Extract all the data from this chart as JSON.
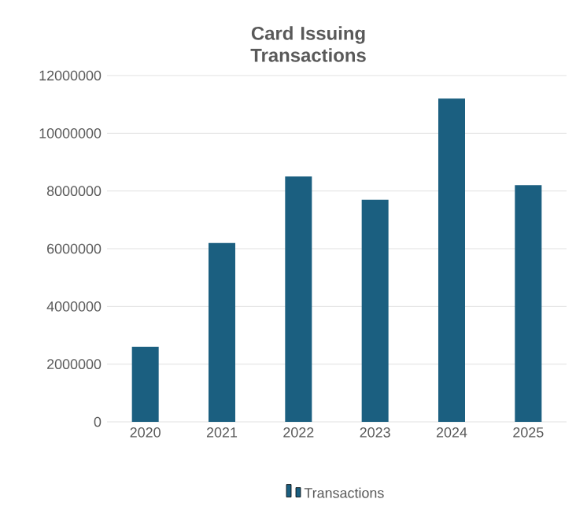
{
  "chart_data": {
    "type": "bar",
    "title": "Card Issuing Transactions",
    "categories": [
      "2020",
      "2021",
      "2022",
      "2023",
      "2024",
      "2025"
    ],
    "series": [
      {
        "name": "Transactions",
        "color": "#1b5f80",
        "values": [
          2600000,
          6200000,
          8500000,
          7700000,
          11200000,
          8200000
        ]
      }
    ],
    "ylim": [
      0,
      12000000
    ],
    "yticks": [
      0,
      2000000,
      4000000,
      6000000,
      8000000,
      10000000,
      12000000
    ],
    "grid": "y",
    "legend": "bottom"
  }
}
